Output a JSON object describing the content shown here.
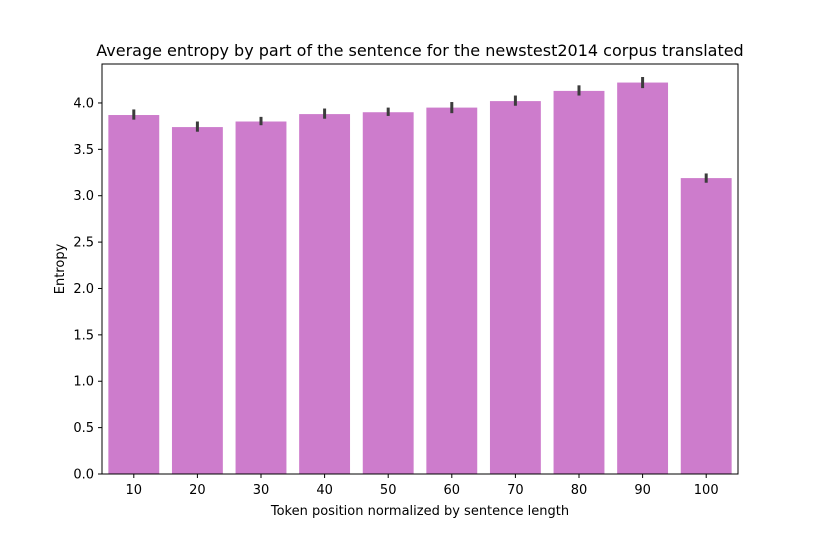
{
  "chart_data": {
    "type": "bar",
    "title": "Average entropy by part of the sentence for the newstest2014 corpus translated",
    "xlabel": "Token position normalized by sentence length",
    "ylabel": "Entropy",
    "categories": [
      "10",
      "20",
      "30",
      "40",
      "50",
      "60",
      "70",
      "80",
      "90",
      "100"
    ],
    "values": [
      3.87,
      3.74,
      3.8,
      3.88,
      3.9,
      3.95,
      4.02,
      4.13,
      4.22,
      3.19
    ],
    "error_low": [
      3.82,
      3.69,
      3.76,
      3.83,
      3.86,
      3.89,
      3.97,
      4.08,
      4.16,
      3.14
    ],
    "error_high": [
      3.93,
      3.8,
      3.85,
      3.94,
      3.95,
      4.01,
      4.08,
      4.19,
      4.28,
      3.24
    ],
    "ylim": [
      0,
      4.42
    ],
    "yticks": [
      "0.0",
      "0.5",
      "1.0",
      "1.5",
      "2.0",
      "2.5",
      "3.0",
      "3.5",
      "4.0"
    ],
    "bar_color": "#cd7ccc",
    "error_color": "#3c3c3c",
    "grid": false,
    "legend": "none"
  }
}
